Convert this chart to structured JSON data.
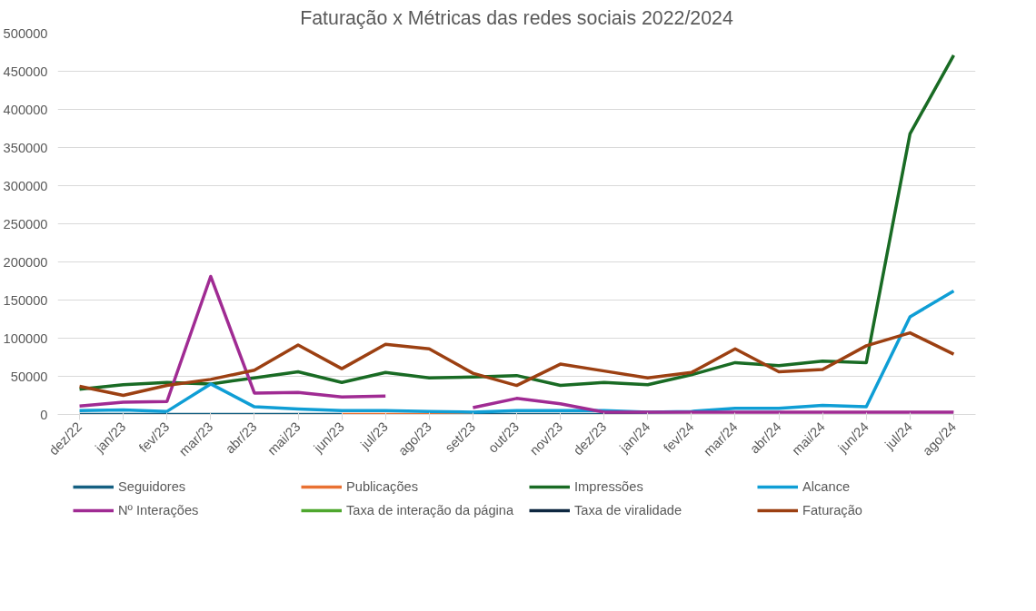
{
  "chart_data": {
    "type": "line",
    "title": "Faturação x Métricas das redes sociais 2022/2024",
    "categories": [
      "dez/22",
      "jan/23",
      "fev/23",
      "mar/23",
      "abr/23",
      "mai/23",
      "jun/23",
      "jul/23",
      "ago/23",
      "set/23",
      "out/23",
      "nov/23",
      "dez/23",
      "jan/24",
      "fev/24",
      "mar/24",
      "abr/24",
      "mai/24",
      "jun/24",
      "jul/24",
      "ago/24"
    ],
    "series": [
      {
        "name": "Seguidores",
        "color": "#156082",
        "values": [
          0,
          0,
          0,
          0,
          0,
          0,
          0,
          null,
          null,
          0,
          0,
          0,
          0,
          0,
          null,
          null,
          null,
          null,
          null,
          null,
          null
        ]
      },
      {
        "name": "Publicações",
        "color": "#e97132",
        "values": [
          null,
          null,
          null,
          null,
          null,
          null,
          0,
          0,
          0,
          0,
          null,
          null,
          null,
          null,
          null,
          null,
          null,
          null,
          null,
          null,
          null
        ]
      },
      {
        "name": "Impressões",
        "color": "#196b24",
        "values": [
          33000,
          39000,
          42000,
          40000,
          48000,
          56000,
          42000,
          55000,
          48000,
          49000,
          51000,
          38000,
          42000,
          39000,
          52000,
          68000,
          64000,
          70000,
          68000,
          368000,
          471000
        ]
      },
      {
        "name": "Alcance",
        "color": "#0f9ed5",
        "values": [
          5000,
          6000,
          4000,
          40000,
          10000,
          7000,
          5000,
          5000,
          4000,
          3000,
          5000,
          5000,
          5000,
          3000,
          4000,
          8000,
          8000,
          12000,
          10000,
          128000,
          162000
        ]
      },
      {
        "name": "Nº Interações",
        "color": "#a02b93",
        "values": [
          11000,
          16000,
          17000,
          181000,
          28000,
          29000,
          23000,
          24000,
          null,
          9000,
          21000,
          14000,
          3000,
          3000,
          3000,
          3000,
          3000,
          3000,
          3000,
          3000,
          3000
        ]
      },
      {
        "name": "Taxa de interação da página",
        "color": "#4ea72e",
        "values": [
          null,
          null,
          null,
          null,
          null,
          null,
          null,
          null,
          null,
          null,
          null,
          null,
          null,
          null,
          null,
          null,
          null,
          null,
          null,
          null,
          null
        ]
      },
      {
        "name": "Taxa de viralidade",
        "color": "#0e2841",
        "values": [
          null,
          null,
          null,
          null,
          null,
          null,
          null,
          null,
          null,
          null,
          null,
          null,
          null,
          null,
          null,
          null,
          null,
          null,
          null,
          null,
          null
        ]
      },
      {
        "name": "Faturação",
        "color": "#9c4012",
        "values": [
          37000,
          25000,
          38000,
          46000,
          58000,
          91000,
          60000,
          92000,
          86000,
          54000,
          38000,
          66000,
          57000,
          48000,
          55000,
          86000,
          56000,
          59000,
          90000,
          107000,
          79000
        ]
      }
    ],
    "ylim": [
      0,
      500000
    ],
    "yticks": [
      0,
      50000,
      100000,
      150000,
      200000,
      250000,
      300000,
      350000,
      400000,
      450000,
      500000
    ],
    "grid": "y",
    "legend": "bottom",
    "marker": "none",
    "line_style": "solid"
  }
}
